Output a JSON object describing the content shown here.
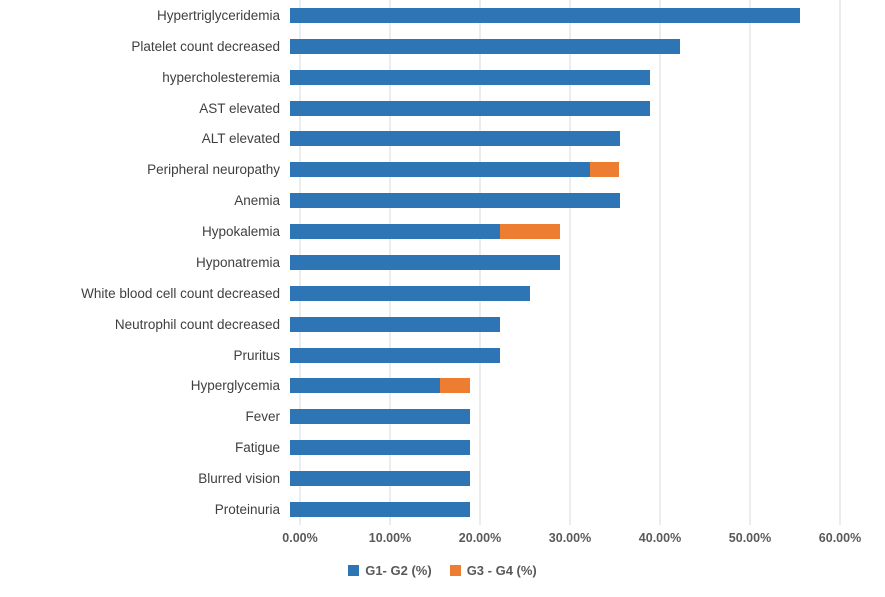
{
  "chart_data": {
    "type": "bar",
    "orientation": "horizontal",
    "stacked": true,
    "title": "",
    "xlabel": "",
    "ylabel": "",
    "xlim": [
      0,
      60
    ],
    "x_tick_labels": [
      "0.00%",
      "10.00%",
      "20.00%",
      "30.00%",
      "40.00%",
      "50.00%",
      "60.00%"
    ],
    "grid": "vertical",
    "legend_position": "bottom",
    "categories": [
      "Hypertriglyceridemia",
      "Platelet count decreased",
      "hypercholesteremia",
      "AST elevated",
      "ALT elevated",
      "Peripheral neuropathy",
      "Anemia",
      "Hypokalemia",
      "Hyponatremia",
      "White blood cell count decreased",
      "Neutrophil count decreased",
      "Pruritus",
      "Hyperglycemia",
      "Fever",
      "Fatigue",
      "Blurred vision",
      "Proteinuria"
    ],
    "series": [
      {
        "name": "G1- G2 (%)",
        "color": "#2E75B6",
        "values": [
          56.7,
          43.3,
          40.0,
          40.0,
          36.7,
          33.3,
          36.7,
          23.3,
          30.0,
          26.7,
          23.3,
          23.3,
          16.7,
          20.0,
          20.0,
          20.0,
          20.0
        ]
      },
      {
        "name": "G3 - G4 (%)",
        "color": "#ED7D31",
        "values": [
          0,
          0,
          0,
          0,
          0,
          3.3,
          0,
          6.7,
          0,
          0,
          0,
          0,
          3.3,
          0,
          0,
          0,
          0
        ]
      }
    ]
  },
  "colors": {
    "gridline": "#D9D9D9",
    "category_label": "#3F3F3F",
    "axis_label": "#595959",
    "background": "#FFFFFF"
  }
}
